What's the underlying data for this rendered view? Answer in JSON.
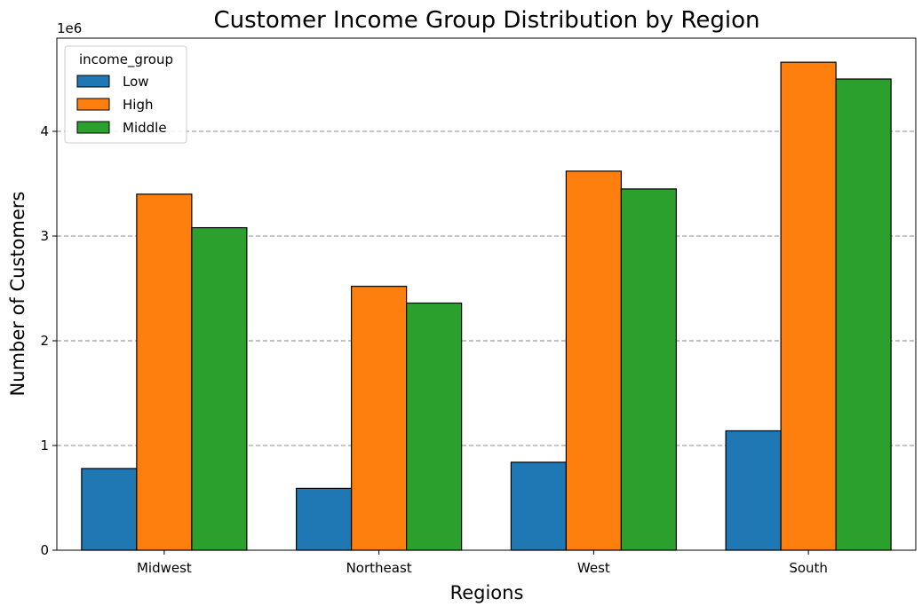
{
  "chart_data": {
    "type": "bar",
    "title": "Customer Income Group Distribution by Region",
    "xlabel": "Regions",
    "ylabel": "Number of Customers",
    "y_scale_label": "1e6",
    "y_ticks": [
      "0",
      "1",
      "2",
      "3",
      "4"
    ],
    "ylim": [
      0,
      4890000
    ],
    "categories": [
      "Midwest",
      "Northeast",
      "West",
      "South"
    ],
    "legend": {
      "title": "income_group",
      "placement": "upper-left"
    },
    "grid": "y-dashed",
    "series": [
      {
        "name": "Low",
        "color": "#1f77b4",
        "values": [
          780000,
          590000,
          840000,
          1140000
        ]
      },
      {
        "name": "High",
        "color": "#ff7f0e",
        "values": [
          3400000,
          2520000,
          3620000,
          4660000
        ]
      },
      {
        "name": "Middle",
        "color": "#2ca02c",
        "values": [
          3080000,
          2360000,
          3450000,
          4500000
        ]
      }
    ]
  }
}
